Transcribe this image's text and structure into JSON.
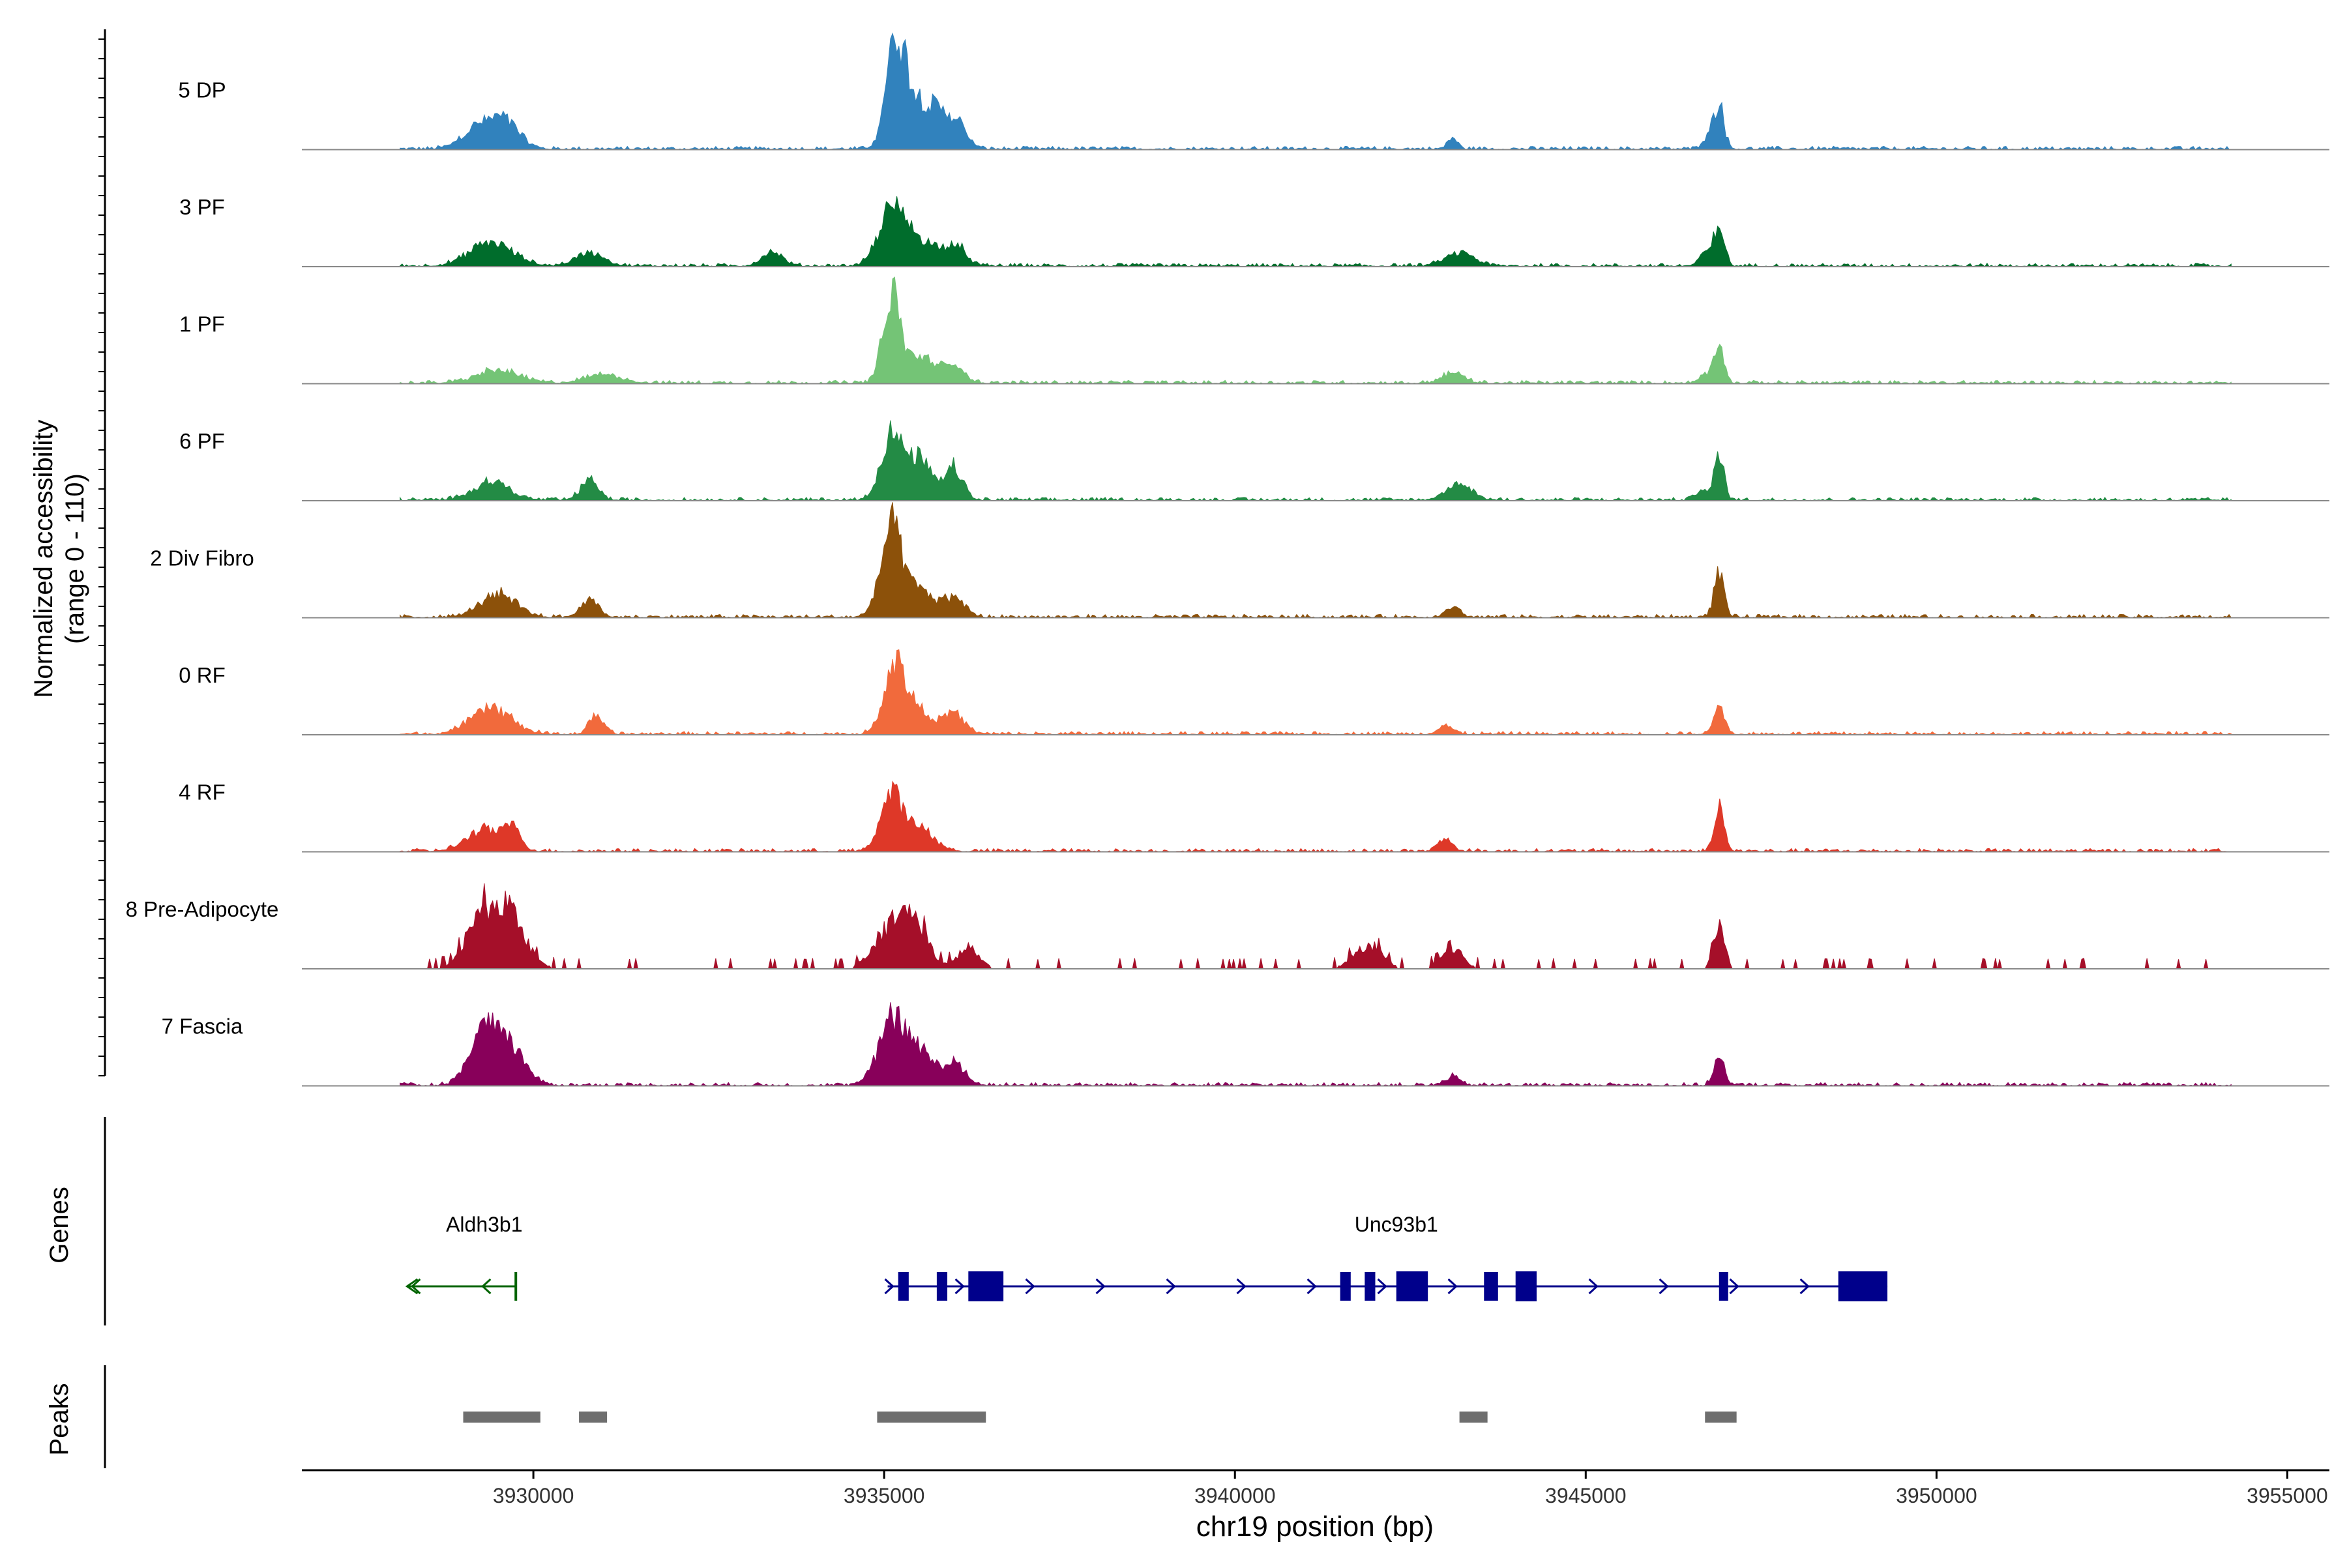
{
  "chart_data": {
    "type": "area",
    "title": "",
    "xlabel": "chr19 position (bp)",
    "ylabel_line1": "Normalized accessibility",
    "ylabel_line2": "(range 0 - 110)",
    "y_range": [
      0,
      110
    ],
    "xlim": [
      3926700,
      3955600
    ],
    "x_ticks": [
      3930000,
      3935000,
      3940000,
      3945000,
      3950000,
      3955000
    ],
    "x_tick_labels": [
      "3930000",
      "3935000",
      "3940000",
      "3945000",
      "3950000",
      "3955000"
    ],
    "genes_label": "Genes",
    "peaks_label": "Peaks",
    "series": [
      {
        "name": "5 DP",
        "color": "#3182BD",
        "peaks": [
          [
            3929200,
            20,
            220
          ],
          [
            3929600,
            25,
            200
          ],
          [
            3935150,
            100,
            130
          ],
          [
            3935400,
            45,
            150
          ],
          [
            3935700,
            32,
            140
          ],
          [
            3936000,
            28,
            150
          ],
          [
            3943100,
            10,
            70
          ],
          [
            3946900,
            42,
            70
          ],
          [
            3946750,
            12,
            80
          ]
        ]
      },
      {
        "name": "3 PF",
        "color": "#006D2C",
        "peaks": [
          [
            3929400,
            22,
            300
          ],
          [
            3930800,
            12,
            200
          ],
          [
            3933400,
            12,
            150
          ],
          [
            3935100,
            50,
            180
          ],
          [
            3935500,
            25,
            220
          ],
          [
            3936000,
            20,
            150
          ],
          [
            3943200,
            12,
            200
          ],
          [
            3946900,
            42,
            70
          ],
          [
            3946700,
            12,
            80
          ]
        ]
      },
      {
        "name": "1 PF",
        "color": "#74C476",
        "peaks": [
          [
            3929500,
            12,
            300
          ],
          [
            3931000,
            8,
            250
          ],
          [
            3935100,
            80,
            120
          ],
          [
            3935500,
            25,
            220
          ],
          [
            3936000,
            15,
            150
          ],
          [
            3943100,
            10,
            150
          ],
          [
            3946900,
            35,
            70
          ],
          [
            3946700,
            8,
            80
          ]
        ]
      },
      {
        "name": "6 PF",
        "color": "#238B45",
        "peaks": [
          [
            3929400,
            18,
            250
          ],
          [
            3930800,
            20,
            120
          ],
          [
            3935100,
            60,
            150
          ],
          [
            3935500,
            38,
            180
          ],
          [
            3936000,
            30,
            120
          ],
          [
            3943200,
            15,
            180
          ],
          [
            3946900,
            42,
            70
          ],
          [
            3946650,
            10,
            80
          ]
        ]
      },
      {
        "name": "2 Div Fibro",
        "color": "#8C510A",
        "peaks": [
          [
            3929500,
            22,
            250
          ],
          [
            3930800,
            18,
            120
          ],
          [
            3935100,
            82,
            150
          ],
          [
            3935500,
            25,
            200
          ],
          [
            3936000,
            18,
            150
          ],
          [
            3943100,
            10,
            100
          ],
          [
            3946900,
            42,
            70
          ]
        ]
      },
      {
        "name": "0 RF",
        "color": "#F16A3C",
        "peaks": [
          [
            3929400,
            25,
            280
          ],
          [
            3930900,
            18,
            100
          ],
          [
            3935150,
            65,
            150
          ],
          [
            3935500,
            22,
            200
          ],
          [
            3936000,
            18,
            150
          ],
          [
            3943000,
            8,
            100
          ],
          [
            3946900,
            30,
            70
          ]
        ]
      },
      {
        "name": "4 RF",
        "color": "#DE3828",
        "peaks": [
          [
            3929300,
            20,
            250
          ],
          [
            3929700,
            18,
            120
          ],
          [
            3935100,
            52,
            150
          ],
          [
            3935500,
            22,
            200
          ],
          [
            3943000,
            12,
            100
          ],
          [
            3946900,
            42,
            70
          ]
        ]
      },
      {
        "name": "8 Pre-Adipocyte",
        "color": "#A50F29",
        "peaks": [
          [
            3929200,
            35,
            200
          ],
          [
            3929600,
            55,
            250
          ],
          [
            3935000,
            30,
            200
          ],
          [
            3935400,
            50,
            200
          ],
          [
            3936200,
            20,
            150
          ],
          [
            3941900,
            22,
            200
          ],
          [
            3943100,
            20,
            150
          ],
          [
            3946900,
            40,
            80
          ]
        ]
      },
      {
        "name": "7 Fascia",
        "color": "#88005A",
        "peaks": [
          [
            3929300,
            52,
            200
          ],
          [
            3929700,
            32,
            200
          ],
          [
            3935100,
            60,
            180
          ],
          [
            3935500,
            32,
            200
          ],
          [
            3936000,
            20,
            150
          ],
          [
            3943100,
            8,
            100
          ],
          [
            3946900,
            30,
            70
          ]
        ]
      }
    ],
    "genes": [
      {
        "name": "Aldh3b1",
        "strand": "-",
        "color": "#006400",
        "start": 3928200,
        "end": 3929750,
        "exons": [],
        "label_x": 3929300
      },
      {
        "name": "Unc93b1",
        "strand": "+",
        "color": "#00008B",
        "start": 3935050,
        "end": 3949300,
        "label_x": 3942300,
        "exons": [
          [
            3935200,
            3935350
          ],
          [
            3935750,
            3935900
          ],
          [
            3936200,
            3936700
          ],
          [
            3941500,
            3941650
          ],
          [
            3941850,
            3942000
          ],
          [
            3942300,
            3942750
          ],
          [
            3943550,
            3943750
          ],
          [
            3944000,
            3944300
          ],
          [
            3946900,
            3947000
          ],
          [
            3948600,
            3949300
          ]
        ]
      }
    ],
    "peak_regions": [
      [
        3929000,
        3930100
      ],
      [
        3930650,
        3931050
      ],
      [
        3934900,
        3936450
      ],
      [
        3943200,
        3943600
      ],
      [
        3946700,
        3947150
      ]
    ]
  }
}
